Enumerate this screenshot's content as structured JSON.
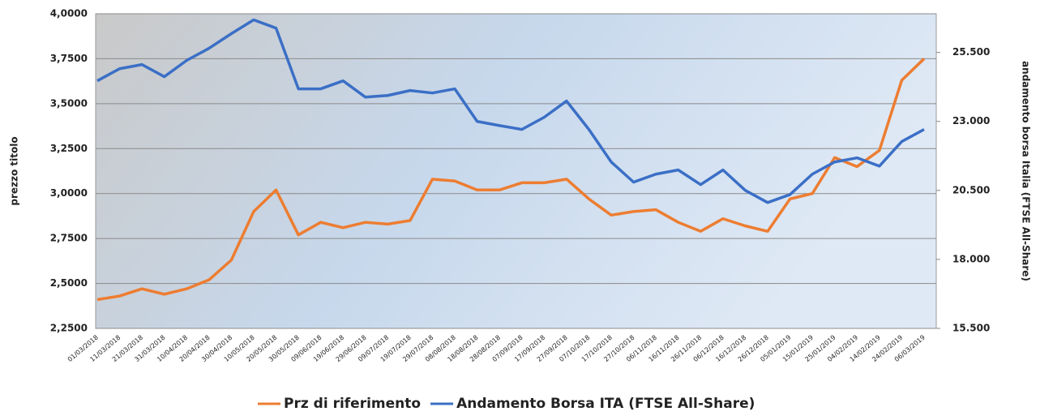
{
  "chart_data": {
    "type": "line",
    "ylabel": "prezzo titolo",
    "y2label": "andamento borsa Italia (FTSE All-Share)",
    "categories": [
      "01/03/2018",
      "11/03/2018",
      "21/03/2018",
      "31/03/2018",
      "10/04/2018",
      "20/04/2018",
      "30/04/2018",
      "10/05/2018",
      "20/05/2018",
      "30/05/2018",
      "09/06/2018",
      "19/06/2018",
      "29/06/2018",
      "09/07/2018",
      "19/07/2018",
      "29/07/2018",
      "08/08/2018",
      "18/08/2018",
      "28/08/2018",
      "07/09/2018",
      "17/09/2018",
      "27/09/2018",
      "07/10/2018",
      "17/10/2018",
      "27/10/2018",
      "06/11/2018",
      "16/11/2018",
      "26/11/2018",
      "06/12/2018",
      "16/12/2018",
      "26/12/2018",
      "05/01/2019",
      "15/01/2019",
      "25/01/2019",
      "04/02/2019",
      "14/02/2019",
      "24/02/2019",
      "06/03/2019"
    ],
    "series": [
      {
        "name": "Prz di riferimento",
        "color": "#ed7d31",
        "axis": "y",
        "values": [
          2.41,
          2.43,
          2.47,
          2.44,
          2.47,
          2.52,
          2.63,
          2.9,
          3.02,
          2.77,
          2.84,
          2.81,
          2.84,
          2.83,
          2.85,
          3.08,
          3.07,
          3.02,
          3.02,
          3.06,
          3.06,
          3.08,
          2.97,
          2.88,
          2.9,
          2.91,
          2.84,
          2.79,
          2.86,
          2.82,
          2.79,
          2.97,
          3.0,
          3.2,
          3.15,
          3.24,
          3.63,
          3.75
        ]
      },
      {
        "name": "Andamento Borsa ITA (FTSE All-Share)",
        "color": "#3b6fc6",
        "axis": "y2",
        "values": [
          24470,
          24910,
          25060,
          24620,
          25210,
          25650,
          26180,
          26680,
          26380,
          24180,
          24180,
          24470,
          23880,
          23940,
          24120,
          24030,
          24180,
          23000,
          22850,
          22710,
          23150,
          23740,
          22710,
          21530,
          20800,
          21090,
          21240,
          20710,
          21240,
          20500,
          20060,
          20350,
          21090,
          21530,
          21680,
          21380,
          22270,
          22710
        ]
      }
    ],
    "ylim": [
      2.25,
      4.0
    ],
    "yticks": [
      {
        "value": 2.25,
        "label": "2,2500"
      },
      {
        "value": 2.5,
        "label": "2,5000"
      },
      {
        "value": 2.75,
        "label": "2,7500"
      },
      {
        "value": 3.0,
        "label": "3,0000"
      },
      {
        "value": 3.25,
        "label": "3,2500"
      },
      {
        "value": 3.5,
        "label": "3,5000"
      },
      {
        "value": 3.75,
        "label": "3,7500"
      },
      {
        "value": 4.0,
        "label": "4,0000"
      }
    ],
    "y2lim": [
      15500,
      26900
    ],
    "y2ticks": [
      {
        "value": 15500,
        "label": "15.500"
      },
      {
        "value": 18000,
        "label": "18.000"
      },
      {
        "value": 20500,
        "label": "20.500"
      },
      {
        "value": 23000,
        "label": "23.000"
      },
      {
        "value": 25500,
        "label": "25.500"
      }
    ],
    "grid": true,
    "legend": "bottom"
  }
}
